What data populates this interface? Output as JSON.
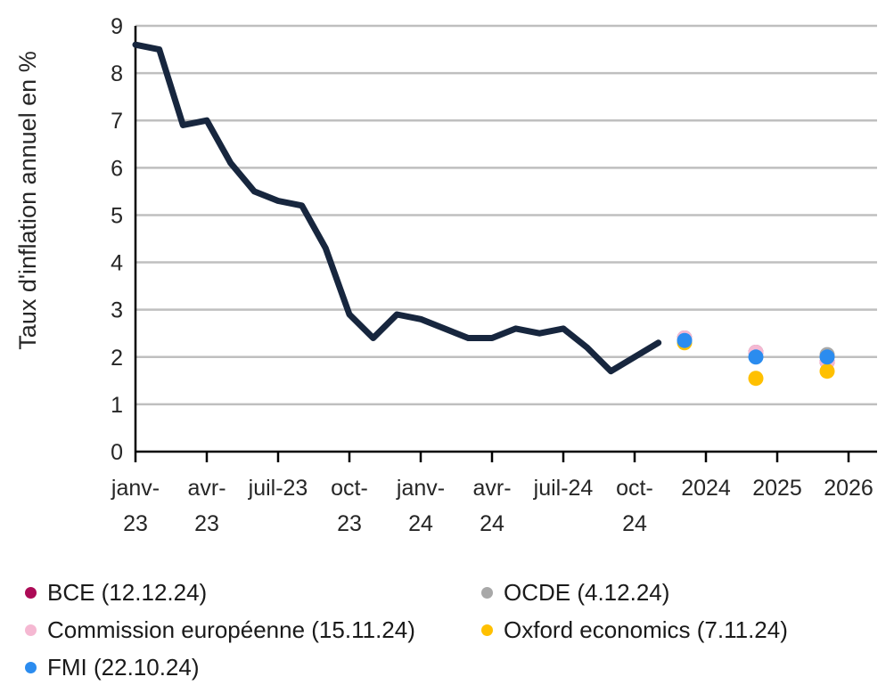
{
  "page": {
    "background": "#FFFFFF"
  },
  "chart_data": {
    "type": "line",
    "title": "",
    "xlabel": "",
    "ylabel": "Taux d'inflation annuel en %",
    "ylim": [
      0,
      9
    ],
    "yticks": [
      0,
      1,
      2,
      3,
      4,
      5,
      6,
      7,
      8,
      9
    ],
    "grid": "horizontal",
    "gridline_color": "#BFBFBF",
    "axis_color": "#000000",
    "tick_text_color": "#262626",
    "legend_position": "bottom-left-two-columns",
    "x_axis_tick_labels": [
      [
        "janv-",
        "23"
      ],
      [
        "avr-",
        "23"
      ],
      [
        "juil-23"
      ],
      [
        "oct-",
        "23"
      ],
      [
        "janv-",
        "24"
      ],
      [
        "avr-",
        "24"
      ],
      [
        "juil-24"
      ],
      [
        "oct-",
        "24"
      ],
      [
        "2024"
      ],
      [
        "2025"
      ],
      [
        "2026"
      ]
    ],
    "line_series": {
      "name": "Taux d'inflation annuel (historique)",
      "color": "#17263E",
      "months": [
        "janv-23",
        "févr-23",
        "mars-23",
        "avr-23",
        "mai-23",
        "juin-23",
        "juil-23",
        "août-23",
        "sept-23",
        "oct-23",
        "nov-23",
        "déc-23",
        "janv-24",
        "févr-24",
        "mars-24",
        "avr-24",
        "mai-24",
        "juin-24",
        "juil-24",
        "août-24",
        "sept-24",
        "oct-24",
        "nov-24"
      ],
      "values": [
        8.6,
        8.5,
        6.9,
        7.0,
        6.1,
        5.5,
        5.3,
        5.2,
        4.3,
        2.9,
        2.4,
        2.9,
        2.8,
        2.6,
        2.4,
        2.4,
        2.6,
        2.5,
        2.6,
        2.2,
        1.7,
        2.0,
        2.3
      ]
    },
    "forecast_categories": [
      "2024",
      "2025",
      "2026"
    ],
    "forecast_series": [
      {
        "name": "BCE (12.12.24)",
        "color": "#AC0A56",
        "values": [
          2.4,
          2.1,
          1.9
        ]
      },
      {
        "name": "OCDE (4.12.24)",
        "color": "#A8A8A8",
        "values": [
          2.4,
          2.1,
          2.05
        ]
      },
      {
        "name": "Commission européenne (15.11.24)",
        "color": "#F5B8D2",
        "values": [
          2.4,
          2.1,
          1.9
        ]
      },
      {
        "name": "Oxford economics (7.11.24)",
        "color": "#FFC000",
        "values": [
          2.3,
          1.55,
          1.7
        ]
      },
      {
        "name": "FMI (22.10.24)",
        "color": "#2B8CEF",
        "values": [
          2.35,
          2.0,
          2.0
        ]
      }
    ]
  }
}
